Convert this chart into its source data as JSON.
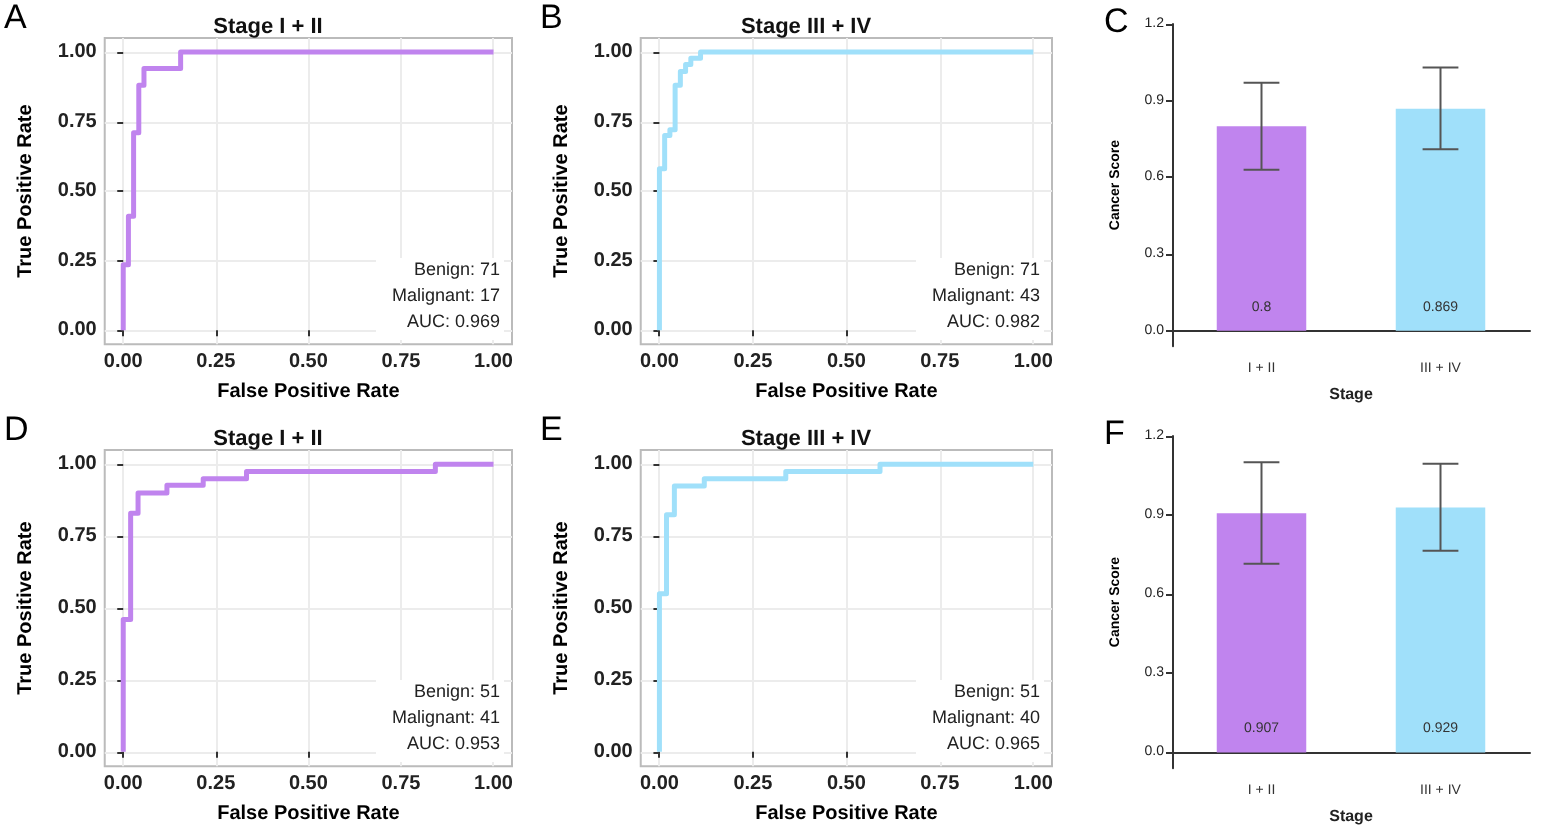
{
  "chart_data": [
    {
      "type": "line",
      "title": "Stage I + II",
      "xlabel": "False Positive Rate",
      "ylabel": "True Positive Rate",
      "color": "#c084ee",
      "marker": "none",
      "grid": true,
      "x": [
        0,
        0,
        0.014,
        0.014,
        0.028,
        0.028,
        0.042,
        0.042,
        0.056,
        0.056,
        0.155,
        0.155,
        1
      ],
      "values": [
        0,
        0.235,
        0.235,
        0.41,
        0.41,
        0.71,
        0.71,
        0.88,
        0.88,
        0.94,
        0.94,
        1,
        1
      ],
      "xlim": [
        -0.05,
        1.05
      ],
      "ylim": [
        -0.05,
        1.05
      ],
      "xticks": [
        {
          "value": 0,
          "label": "0.00"
        },
        {
          "value": 0.25,
          "label": "0.25"
        },
        {
          "value": 0.5,
          "label": "0.50"
        },
        {
          "value": 0.75,
          "label": "0.75"
        },
        {
          "value": 1,
          "label": "1.00"
        }
      ],
      "yticks": [
        {
          "value": 0,
          "label": "0.00"
        },
        {
          "value": 0.25,
          "label": "0.25"
        },
        {
          "value": 0.5,
          "label": "0.50"
        },
        {
          "value": 0.75,
          "label": "0.75"
        },
        {
          "value": 1,
          "label": "1.00"
        }
      ],
      "annotations": [
        "A",
        "Benign: 71",
        "Malignant: 17",
        "AUC: 0.969"
      ]
    },
    {
      "type": "line",
      "title": "Stage III + IV",
      "xlabel": "False Positive Rate",
      "ylabel": "True Positive Rate",
      "color": "#a0e0fa",
      "marker": "none",
      "grid": true,
      "x": [
        0,
        0,
        0.014,
        0.014,
        0.028,
        0.028,
        0.042,
        0.042,
        0.056,
        0.056,
        0.07,
        0.07,
        0.084,
        0.084,
        0.11,
        0.11,
        1
      ],
      "values": [
        0,
        0.58,
        0.58,
        0.7,
        0.7,
        0.72,
        0.72,
        0.88,
        0.88,
        0.93,
        0.93,
        0.955,
        0.955,
        0.977,
        0.977,
        1,
        1
      ],
      "xlim": [
        -0.05,
        1.05
      ],
      "ylim": [
        -0.05,
        1.05
      ],
      "xticks": [
        {
          "value": 0,
          "label": "0.00"
        },
        {
          "value": 0.25,
          "label": "0.25"
        },
        {
          "value": 0.5,
          "label": "0.50"
        },
        {
          "value": 0.75,
          "label": "0.75"
        },
        {
          "value": 1,
          "label": "1.00"
        }
      ],
      "yticks": [
        {
          "value": 0,
          "label": "0.00"
        },
        {
          "value": 0.25,
          "label": "0.25"
        },
        {
          "value": 0.5,
          "label": "0.50"
        },
        {
          "value": 0.75,
          "label": "0.75"
        },
        {
          "value": 1,
          "label": "1.00"
        }
      ],
      "annotations": [
        "B",
        "Benign: 71",
        "Malignant: 43",
        "AUC: 0.982"
      ]
    },
    {
      "type": "bar",
      "xlabel": "Stage",
      "ylabel": "Cancer Score",
      "categories": [
        "I + II",
        "III + IV"
      ],
      "values": [
        0.8,
        0.869
      ],
      "colors": [
        "#c084ee",
        "#a0e0fa"
      ],
      "errors": [
        [
          0.63,
          0.97
        ],
        [
          0.71,
          1.03
        ]
      ],
      "data_labels": true,
      "grid": false,
      "ylim": [
        -0.06,
        1.2
      ],
      "yticks": [
        {
          "value": 0,
          "label": "0.0"
        },
        {
          "value": 0.3,
          "label": "0.3"
        },
        {
          "value": 0.6,
          "label": "0.6"
        },
        {
          "value": 0.9,
          "label": "0.9"
        },
        {
          "value": 1.2,
          "label": "1.2"
        }
      ],
      "annotations": [
        "C"
      ]
    },
    {
      "type": "line",
      "title": "Stage I + II",
      "xlabel": "False Positive Rate",
      "ylabel": "True Positive Rate",
      "color": "#c084ee",
      "marker": "none",
      "grid": true,
      "x": [
        0,
        0,
        0.02,
        0.02,
        0.04,
        0.04,
        0.118,
        0.118,
        0.216,
        0.216,
        0.333,
        0.333,
        0.843,
        0.843,
        1
      ],
      "values": [
        0,
        0.46,
        0.46,
        0.83,
        0.83,
        0.9,
        0.9,
        0.927,
        0.927,
        0.95,
        0.95,
        0.975,
        0.975,
        1,
        1
      ],
      "xlim": [
        -0.05,
        1.05
      ],
      "ylim": [
        -0.05,
        1.05
      ],
      "xticks": [
        {
          "value": 0,
          "label": "0.00"
        },
        {
          "value": 0.25,
          "label": "0.25"
        },
        {
          "value": 0.5,
          "label": "0.50"
        },
        {
          "value": 0.75,
          "label": "0.75"
        },
        {
          "value": 1,
          "label": "1.00"
        }
      ],
      "yticks": [
        {
          "value": 0,
          "label": "0.00"
        },
        {
          "value": 0.25,
          "label": "0.25"
        },
        {
          "value": 0.5,
          "label": "0.50"
        },
        {
          "value": 0.75,
          "label": "0.75"
        },
        {
          "value": 1,
          "label": "1.00"
        }
      ],
      "annotations": [
        "D",
        "Benign: 51",
        "Malignant: 41",
        "AUC: 0.953"
      ]
    },
    {
      "type": "line",
      "title": "Stage III + IV",
      "xlabel": "False Positive Rate",
      "ylabel": "True Positive Rate",
      "color": "#a0e0fa",
      "marker": "none",
      "grid": true,
      "x": [
        0,
        0,
        0.019,
        0.019,
        0.04,
        0.04,
        0.12,
        0.12,
        0.338,
        0.338,
        0.59,
        0.59,
        1
      ],
      "values": [
        0,
        0.55,
        0.55,
        0.825,
        0.825,
        0.925,
        0.925,
        0.95,
        0.95,
        0.975,
        0.975,
        1,
        1
      ],
      "xlim": [
        -0.05,
        1.05
      ],
      "ylim": [
        -0.05,
        1.05
      ],
      "xticks": [
        {
          "value": 0,
          "label": "0.00"
        },
        {
          "value": 0.25,
          "label": "0.25"
        },
        {
          "value": 0.5,
          "label": "0.50"
        },
        {
          "value": 0.75,
          "label": "0.75"
        },
        {
          "value": 1,
          "label": "1.00"
        }
      ],
      "yticks": [
        {
          "value": 0,
          "label": "0.00"
        },
        {
          "value": 0.25,
          "label": "0.25"
        },
        {
          "value": 0.5,
          "label": "0.50"
        },
        {
          "value": 0.75,
          "label": "0.75"
        },
        {
          "value": 1,
          "label": "1.00"
        }
      ],
      "annotations": [
        "E",
        "Benign: 51",
        "Malignant: 40",
        "AUC: 0.965"
      ]
    },
    {
      "type": "bar",
      "xlabel": "Stage",
      "ylabel": "Cancer Score",
      "categories": [
        "I + II",
        "III + IV"
      ],
      "values": [
        0.907,
        0.929
      ],
      "colors": [
        "#c084ee",
        "#a0e0fa"
      ],
      "errors": [
        [
          0.715,
          1.1
        ],
        [
          0.765,
          1.095
        ]
      ],
      "data_labels": true,
      "grid": false,
      "ylim": [
        -0.06,
        1.2
      ],
      "yticks": [
        {
          "value": 0,
          "label": "0.0"
        },
        {
          "value": 0.3,
          "label": "0.3"
        },
        {
          "value": 0.6,
          "label": "0.6"
        },
        {
          "value": 0.9,
          "label": "0.9"
        },
        {
          "value": 1.2,
          "label": "1.2"
        }
      ],
      "annotations": [
        "F"
      ]
    }
  ]
}
